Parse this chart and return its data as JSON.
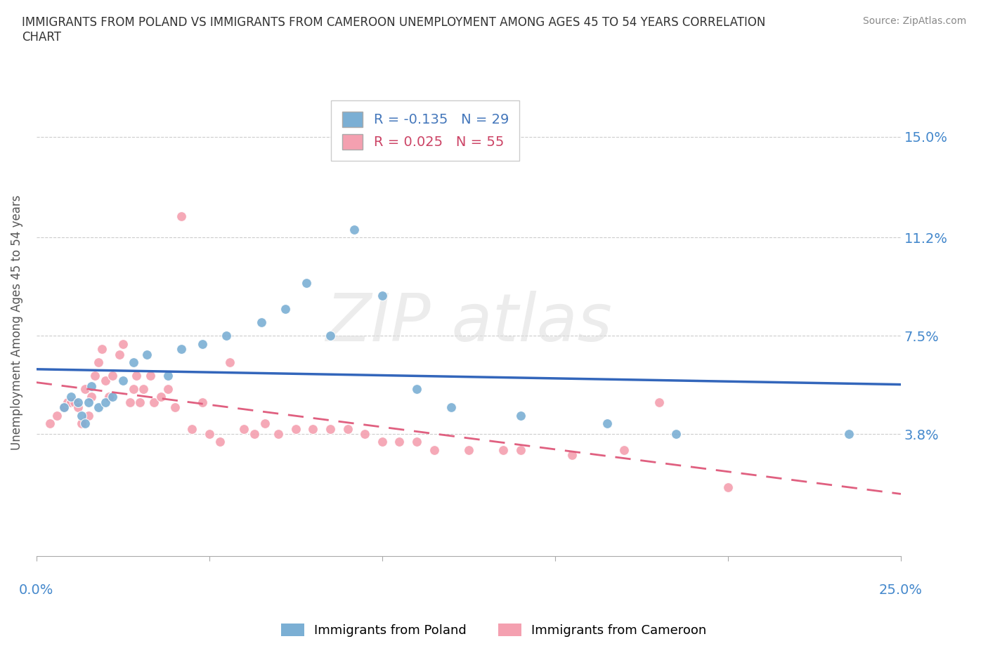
{
  "title": "IMMIGRANTS FROM POLAND VS IMMIGRANTS FROM CAMEROON UNEMPLOYMENT AMONG AGES 45 TO 54 YEARS CORRELATION\nCHART",
  "source": "Source: ZipAtlas.com",
  "ylabel": "Unemployment Among Ages 45 to 54 years",
  "yticks": [
    0.0,
    0.038,
    0.075,
    0.112,
    0.15
  ],
  "ytick_labels": [
    "",
    "3.8%",
    "7.5%",
    "11.2%",
    "15.0%"
  ],
  "xlim": [
    0.0,
    0.25
  ],
  "ylim": [
    -0.008,
    0.168
  ],
  "poland_color": "#7BAFD4",
  "cameroon_color": "#F4A0B0",
  "poland_line_color": "#3366BB",
  "cameroon_line_color": "#E06080",
  "legend_poland_R": "R = -0.135",
  "legend_poland_N": "N = 29",
  "legend_cameroon_R": "R = 0.025",
  "legend_cameroon_N": "N = 55",
  "poland_x": [
    0.008,
    0.01,
    0.012,
    0.013,
    0.014,
    0.015,
    0.016,
    0.018,
    0.02,
    0.022,
    0.025,
    0.028,
    0.032,
    0.038,
    0.042,
    0.048,
    0.055,
    0.065,
    0.072,
    0.078,
    0.085,
    0.092,
    0.1,
    0.11,
    0.12,
    0.14,
    0.165,
    0.185,
    0.235
  ],
  "poland_y": [
    0.048,
    0.052,
    0.05,
    0.045,
    0.042,
    0.05,
    0.056,
    0.048,
    0.05,
    0.052,
    0.058,
    0.065,
    0.068,
    0.06,
    0.07,
    0.072,
    0.075,
    0.08,
    0.085,
    0.095,
    0.075,
    0.115,
    0.09,
    0.055,
    0.048,
    0.045,
    0.042,
    0.038,
    0.038
  ],
  "cameroon_x": [
    0.004,
    0.006,
    0.008,
    0.009,
    0.01,
    0.011,
    0.012,
    0.013,
    0.014,
    0.015,
    0.016,
    0.017,
    0.018,
    0.019,
    0.02,
    0.021,
    0.022,
    0.024,
    0.025,
    0.027,
    0.028,
    0.029,
    0.03,
    0.031,
    0.033,
    0.034,
    0.036,
    0.038,
    0.04,
    0.042,
    0.045,
    0.048,
    0.05,
    0.053,
    0.056,
    0.06,
    0.063,
    0.066,
    0.07,
    0.075,
    0.08,
    0.085,
    0.09,
    0.095,
    0.1,
    0.105,
    0.11,
    0.115,
    0.125,
    0.135,
    0.14,
    0.155,
    0.17,
    0.18,
    0.2
  ],
  "cameroon_y": [
    0.042,
    0.045,
    0.048,
    0.05,
    0.05,
    0.05,
    0.048,
    0.042,
    0.055,
    0.045,
    0.052,
    0.06,
    0.065,
    0.07,
    0.058,
    0.052,
    0.06,
    0.068,
    0.072,
    0.05,
    0.055,
    0.06,
    0.05,
    0.055,
    0.06,
    0.05,
    0.052,
    0.055,
    0.048,
    0.12,
    0.04,
    0.05,
    0.038,
    0.035,
    0.065,
    0.04,
    0.038,
    0.042,
    0.038,
    0.04,
    0.04,
    0.04,
    0.04,
    0.038,
    0.035,
    0.035,
    0.035,
    0.032,
    0.032,
    0.032,
    0.032,
    0.03,
    0.032,
    0.05,
    0.018
  ]
}
